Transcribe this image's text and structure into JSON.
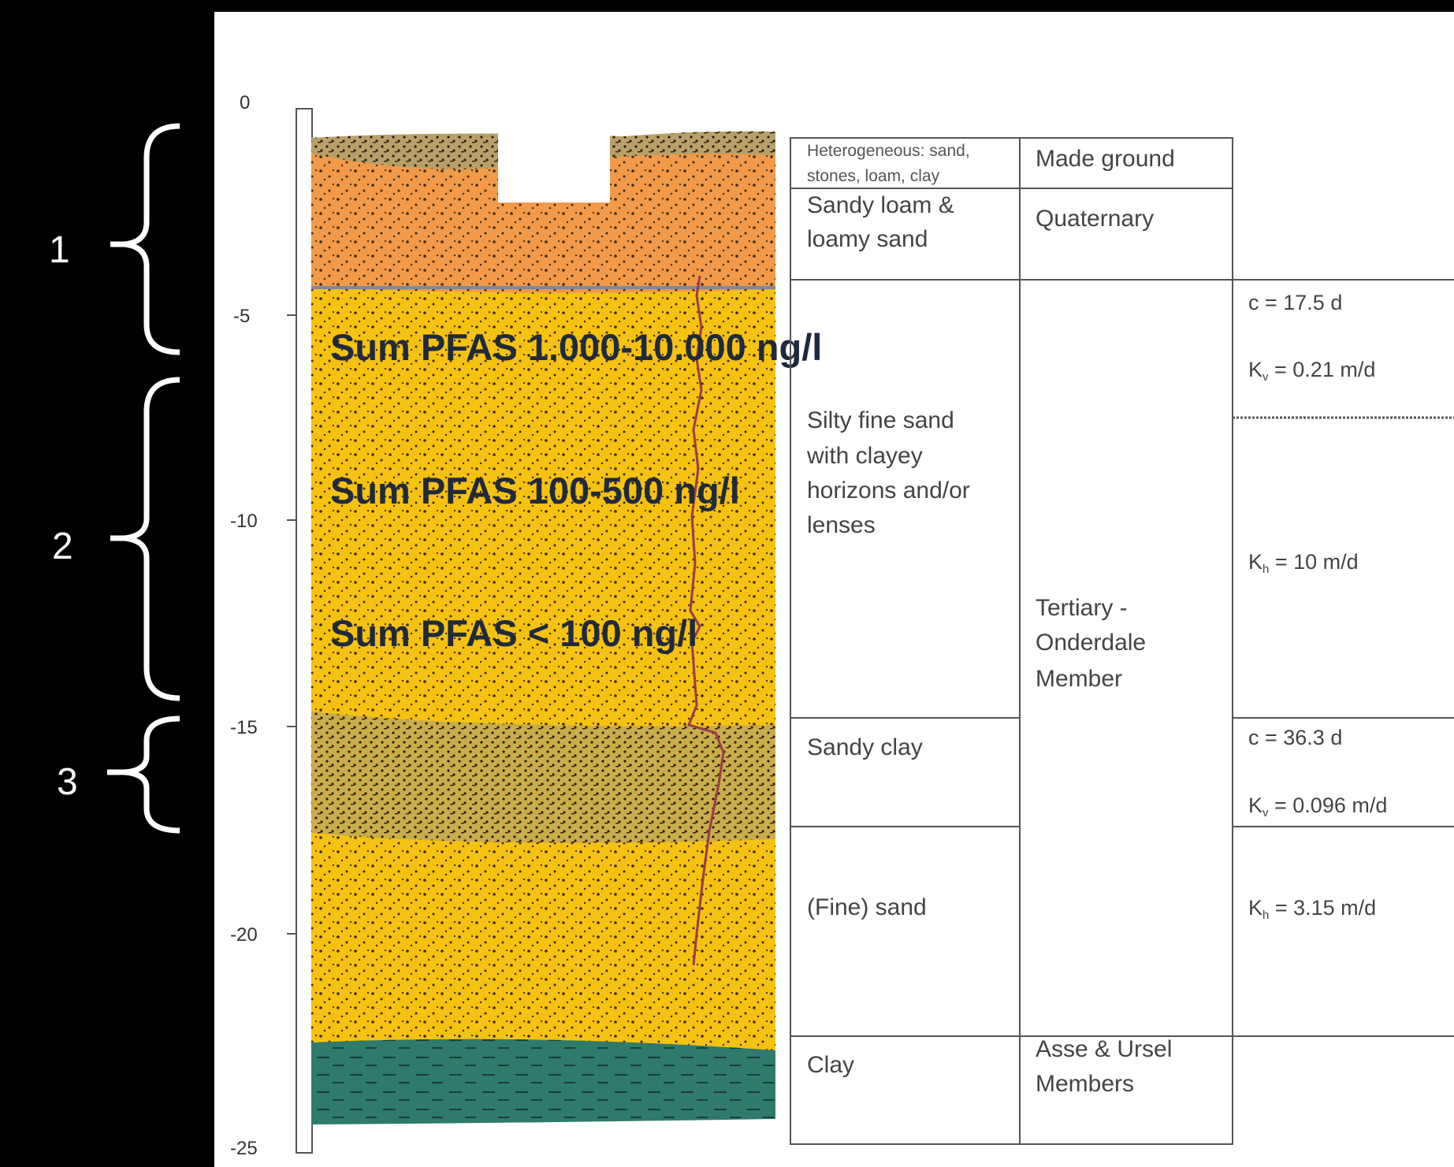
{
  "zones": [
    {
      "label": "1"
    },
    {
      "label": "2"
    },
    {
      "label": "3"
    }
  ],
  "depth_axis": {
    "ticks": [
      "0",
      "-5",
      "-10",
      "-15",
      "-20",
      "-25"
    ]
  },
  "pfas_labels": [
    "Sum PFAS 1.000-10.000 ng/l",
    "Sum PFAS 100-500 ng/l",
    "Sum PFAS < 100 ng/l"
  ],
  "lithology": {
    "made_ground_desc": [
      "Heterogeneous:   sand,",
      "stones, loam, clay"
    ],
    "sandy_loam": [
      "Sandy loam &",
      "loamy sand"
    ],
    "silty_fine_sand": [
      "Silty fine sand",
      "with clayey",
      "horizons and/or",
      "lenses"
    ],
    "sandy_clay": "Sandy clay",
    "fine_sand": "(Fine) sand",
    "clay": "Clay"
  },
  "formations": {
    "made_ground": "Made ground",
    "quaternary": "Quaternary",
    "tertiary": [
      "Tertiary -",
      "Onderdale",
      "Member"
    ],
    "asse_ursel": [
      "Asse & Ursel",
      "Members"
    ]
  },
  "parameters": {
    "c1": "c = 17.5 d",
    "kv1": "K",
    "kv1_sub": "v",
    "kv1_val": " = 0.21 m/d",
    "kh1": "K",
    "kh1_sub": "h",
    "kh1_val": " = 10 m/d",
    "c2": "c = 36.3 d",
    "kv2": "K",
    "kv2_sub": "v",
    "kv2_val": " = 0.096 m/d",
    "kh2": "K",
    "kh2_sub": "h",
    "kh2_val": " = 3.15 m/d"
  },
  "colors": {
    "made_ground": "#b9a06a",
    "sandy_loam": "#f09a4a",
    "silty_sand": "#f5c211",
    "sandy_clay": "#c9ad4a",
    "fine_sand": "#f5c211",
    "clay": "#2f7a6b",
    "well": "#9b3b4a",
    "pfas_text": "#1f2a3d"
  }
}
